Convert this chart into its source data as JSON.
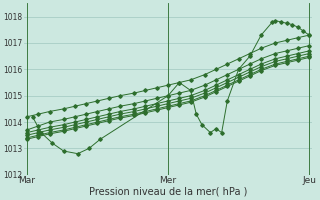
{
  "title": "",
  "xlabel": "Pression niveau de la mer( hPa )",
  "ylabel": "",
  "bg_color": "#cce8e0",
  "grid_color": "#a0c8c0",
  "line_color": "#2d6e2d",
  "tick_color": "#333333",
  "ylim": [
    1012,
    1018.5
  ],
  "yticks": [
    1012,
    1013,
    1014,
    1015,
    1016,
    1017,
    1018
  ],
  "xtick_labels": [
    "Mar",
    "Mer",
    "Jeu"
  ],
  "xtick_positions": [
    0.0,
    0.5,
    1.0
  ],
  "vline_positions": [
    0.0,
    0.5,
    1.0
  ],
  "series": [
    {
      "x": [
        0.0,
        0.04,
        0.08,
        0.13,
        0.17,
        0.21,
        0.25,
        0.29,
        0.33,
        0.38,
        0.42,
        0.46,
        0.5,
        0.54,
        0.58,
        0.63,
        0.67,
        0.71,
        0.75,
        0.79,
        0.83,
        0.88,
        0.92,
        0.96,
        1.0
      ],
      "y": [
        1014.2,
        1014.3,
        1014.4,
        1014.5,
        1014.6,
        1014.7,
        1014.8,
        1014.9,
        1015.0,
        1015.1,
        1015.2,
        1015.3,
        1015.4,
        1015.5,
        1015.6,
        1015.8,
        1016.0,
        1016.2,
        1016.4,
        1016.6,
        1016.8,
        1017.0,
        1017.1,
        1017.2,
        1017.3
      ]
    },
    {
      "x": [
        0.0,
        0.04,
        0.08,
        0.13,
        0.17,
        0.21,
        0.25,
        0.29,
        0.33,
        0.38,
        0.42,
        0.46,
        0.5,
        0.54,
        0.58,
        0.63,
        0.67,
        0.71,
        0.75,
        0.79,
        0.83,
        0.88,
        0.92,
        0.96,
        1.0
      ],
      "y": [
        1013.7,
        1013.85,
        1014.0,
        1014.1,
        1014.2,
        1014.3,
        1014.4,
        1014.5,
        1014.6,
        1014.7,
        1014.8,
        1014.9,
        1015.0,
        1015.1,
        1015.2,
        1015.4,
        1015.6,
        1015.8,
        1016.0,
        1016.2,
        1016.4,
        1016.6,
        1016.7,
        1016.8,
        1016.9
      ]
    },
    {
      "x": [
        0.0,
        0.04,
        0.08,
        0.13,
        0.17,
        0.21,
        0.25,
        0.29,
        0.33,
        0.38,
        0.42,
        0.46,
        0.5,
        0.54,
        0.58,
        0.63,
        0.67,
        0.71,
        0.75,
        0.79,
        0.83,
        0.88,
        0.92,
        0.96,
        1.0
      ],
      "y": [
        1013.6,
        1013.7,
        1013.8,
        1013.9,
        1014.0,
        1014.1,
        1014.2,
        1014.3,
        1014.4,
        1014.5,
        1014.6,
        1014.7,
        1014.8,
        1014.9,
        1015.0,
        1015.2,
        1015.4,
        1015.6,
        1015.8,
        1016.0,
        1016.2,
        1016.4,
        1016.5,
        1016.6,
        1016.7
      ]
    },
    {
      "x": [
        0.0,
        0.04,
        0.08,
        0.13,
        0.17,
        0.21,
        0.25,
        0.29,
        0.33,
        0.38,
        0.42,
        0.46,
        0.5,
        0.54,
        0.58,
        0.63,
        0.67,
        0.71,
        0.75,
        0.79,
        0.83,
        0.88,
        0.92,
        0.96,
        1.0
      ],
      "y": [
        1013.5,
        1013.6,
        1013.7,
        1013.8,
        1013.9,
        1014.0,
        1014.1,
        1014.2,
        1014.3,
        1014.4,
        1014.5,
        1014.6,
        1014.7,
        1014.8,
        1014.9,
        1015.1,
        1015.3,
        1015.5,
        1015.7,
        1015.9,
        1016.1,
        1016.3,
        1016.4,
        1016.5,
        1016.6
      ]
    },
    {
      "x": [
        0.0,
        0.04,
        0.08,
        0.13,
        0.17,
        0.21,
        0.25,
        0.29,
        0.33,
        0.38,
        0.42,
        0.46,
        0.5,
        0.54,
        0.58,
        0.63,
        0.67,
        0.71,
        0.75,
        0.79,
        0.83,
        0.88,
        0.92,
        0.96,
        1.0
      ],
      "y": [
        1013.4,
        1013.5,
        1013.6,
        1013.7,
        1013.8,
        1013.9,
        1014.0,
        1014.1,
        1014.2,
        1014.3,
        1014.4,
        1014.5,
        1014.6,
        1014.7,
        1014.8,
        1015.0,
        1015.2,
        1015.4,
        1015.6,
        1015.8,
        1016.0,
        1016.2,
        1016.3,
        1016.4,
        1016.5
      ]
    },
    {
      "x": [
        0.0,
        0.04,
        0.08,
        0.13,
        0.17,
        0.21,
        0.25,
        0.29,
        0.33,
        0.38,
        0.42,
        0.46,
        0.5,
        0.54,
        0.58,
        0.63,
        0.67,
        0.71,
        0.75,
        0.79,
        0.83,
        0.88,
        0.92,
        0.96,
        1.0
      ],
      "y": [
        1013.35,
        1013.45,
        1013.55,
        1013.65,
        1013.75,
        1013.85,
        1013.95,
        1014.05,
        1014.15,
        1014.25,
        1014.35,
        1014.45,
        1014.55,
        1014.65,
        1014.75,
        1014.95,
        1015.15,
        1015.35,
        1015.55,
        1015.75,
        1015.95,
        1016.15,
        1016.25,
        1016.35,
        1016.45
      ]
    },
    {
      "x": [
        0.02,
        0.05,
        0.09,
        0.13,
        0.18,
        0.22,
        0.26,
        0.5,
        0.54,
        0.58,
        0.6,
        0.62,
        0.65,
        0.67,
        0.69,
        0.71,
        0.75,
        0.79,
        0.83,
        0.87,
        0.88,
        0.9,
        0.92,
        0.94,
        0.96,
        0.98,
        1.0
      ],
      "y": [
        1014.2,
        1013.6,
        1013.2,
        1012.9,
        1012.8,
        1013.0,
        1013.35,
        1015.0,
        1015.5,
        1015.2,
        1014.3,
        1013.9,
        1013.6,
        1013.75,
        1013.6,
        1014.8,
        1016.0,
        1016.5,
        1017.3,
        1017.8,
        1017.85,
        1017.8,
        1017.75,
        1017.7,
        1017.6,
        1017.45,
        1017.3
      ]
    }
  ]
}
